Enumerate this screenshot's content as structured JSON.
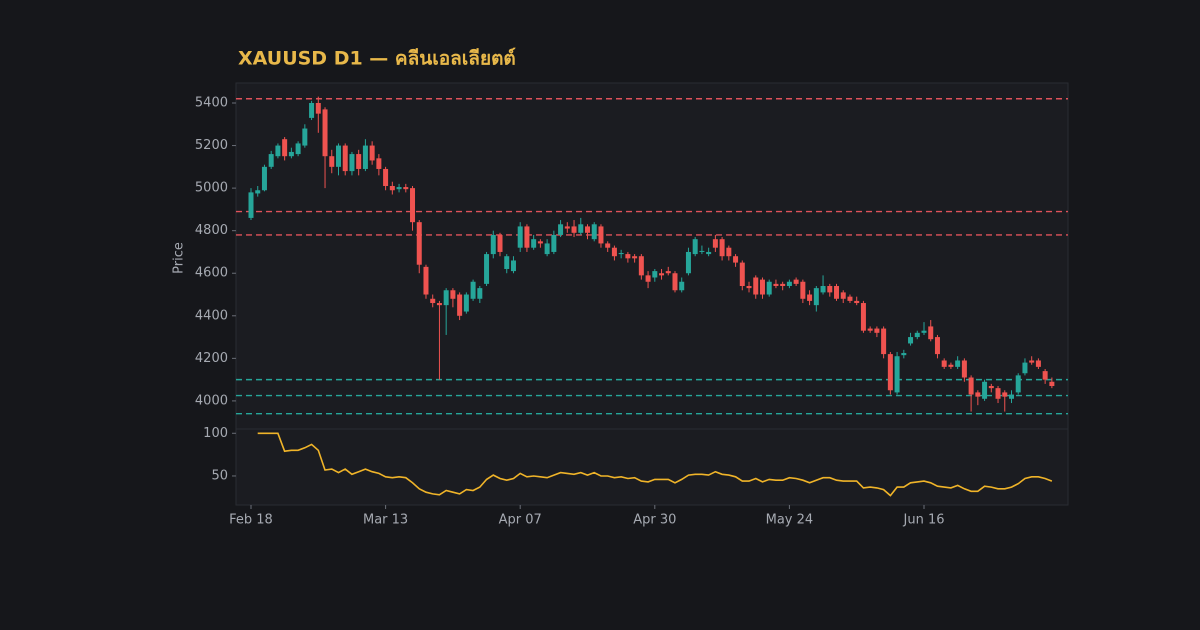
{
  "chart_data": [
    {
      "type": "candlestick",
      "title": "XAUUSD D1 — คลีนเอลเลียตต์",
      "y_label": "Price",
      "categories": [
        "Feb 18",
        null,
        null,
        null,
        null,
        null,
        null,
        null,
        null,
        null,
        null,
        null,
        null,
        null,
        null,
        null,
        null,
        null,
        null,
        null,
        "Mar 13",
        null,
        null,
        null,
        null,
        null,
        null,
        null,
        null,
        null,
        null,
        null,
        null,
        null,
        null,
        null,
        null,
        null,
        null,
        null,
        "Apr 07",
        null,
        null,
        null,
        null,
        null,
        null,
        null,
        null,
        null,
        null,
        null,
        null,
        null,
        null,
        null,
        null,
        null,
        null,
        null,
        "Apr 30",
        null,
        null,
        null,
        null,
        null,
        null,
        null,
        null,
        null,
        null,
        null,
        null,
        null,
        null,
        null,
        null,
        null,
        null,
        null,
        "May 24",
        null,
        null,
        null,
        null,
        null,
        null,
        null,
        null,
        null,
        null,
        null,
        null,
        null,
        null,
        null,
        null,
        null,
        null,
        null,
        "Jun 16",
        null,
        null,
        null,
        null,
        null,
        null,
        null,
        null,
        null,
        null,
        null,
        null,
        null,
        null,
        null,
        null,
        null,
        null,
        null
      ],
      "open": [
        4860,
        4975,
        4990,
        5100,
        5150,
        5230,
        5150,
        5160,
        5200,
        5330,
        5400,
        5370,
        5150,
        5100,
        5200,
        5080,
        5160,
        5090,
        5200,
        5140,
        5090,
        5010,
        4995,
        5005,
        5000,
        4840,
        4630,
        4480,
        4460,
        4450,
        4520,
        4500,
        4420,
        4480,
        4480,
        4550,
        4690,
        4780,
        4620,
        4610,
        4720,
        4820,
        4720,
        4750,
        4690,
        4700,
        4780,
        4820,
        4820,
        4790,
        4820,
        4760,
        4820,
        4740,
        4720,
        4690,
        4690,
        4680,
        4680,
        4590,
        4580,
        4600,
        4610,
        4600,
        4520,
        4600,
        4690,
        4700,
        4690,
        4760,
        4760,
        4720,
        4680,
        4650,
        4540,
        4580,
        4570,
        4500,
        4550,
        4550,
        4540,
        4570,
        4560,
        4500,
        4450,
        4510,
        4540,
        4540,
        4510,
        4490,
        4470,
        4460,
        4340,
        4340,
        4340,
        4220,
        4040,
        4215,
        4270,
        4300,
        4320,
        4350,
        4300,
        4190,
        4170,
        4160,
        4190,
        4110,
        4040,
        4010,
        4070,
        4060,
        4040,
        4010,
        4040,
        4130,
        4190,
        4190,
        4140,
        4090
      ],
      "high": [
        5000,
        5010,
        5110,
        5175,
        5210,
        5240,
        5190,
        5220,
        5300,
        5410,
        5430,
        5380,
        5180,
        5210,
        5210,
        5170,
        5180,
        5230,
        5220,
        5160,
        5100,
        5030,
        5020,
        5020,
        5010,
        4850,
        4640,
        4500,
        4470,
        4530,
        4530,
        4510,
        4510,
        4570,
        4540,
        4700,
        4800,
        4790,
        4690,
        4680,
        4840,
        4830,
        4780,
        4760,
        4760,
        4800,
        4850,
        4840,
        4850,
        4860,
        4830,
        4840,
        4830,
        4750,
        4730,
        4710,
        4700,
        4690,
        4690,
        4610,
        4620,
        4620,
        4630,
        4610,
        4580,
        4720,
        4770,
        4730,
        4720,
        4780,
        4770,
        4730,
        4690,
        4660,
        4560,
        4590,
        4580,
        4570,
        4570,
        4560,
        4570,
        4580,
        4570,
        4520,
        4540,
        4590,
        4550,
        4550,
        4520,
        4500,
        4490,
        4470,
        4350,
        4350,
        4350,
        4230,
        4230,
        4240,
        4320,
        4330,
        4370,
        4380,
        4310,
        4200,
        4180,
        4210,
        4200,
        4120,
        4050,
        4100,
        4080,
        4070,
        4050,
        4050,
        4130,
        4200,
        4210,
        4200,
        4150,
        4110
      ],
      "low": [
        4850,
        4960,
        4985,
        5090,
        5140,
        5130,
        5140,
        5150,
        5190,
        5320,
        5260,
        5000,
        5070,
        5060,
        5060,
        5060,
        5060,
        5080,
        5110,
        5060,
        4990,
        4970,
        4980,
        4980,
        4800,
        4600,
        4480,
        4440,
        4100,
        4310,
        4440,
        4380,
        4410,
        4470,
        4460,
        4540,
        4670,
        4680,
        4600,
        4600,
        4700,
        4700,
        4710,
        4720,
        4680,
        4690,
        4770,
        4790,
        4770,
        4780,
        4760,
        4750,
        4720,
        4700,
        4660,
        4670,
        4650,
        4650,
        4570,
        4530,
        4560,
        4570,
        4590,
        4510,
        4510,
        4590,
        4680,
        4690,
        4680,
        4700,
        4660,
        4660,
        4630,
        4520,
        4510,
        4480,
        4480,
        4490,
        4530,
        4520,
        4530,
        4540,
        4460,
        4450,
        4420,
        4500,
        4490,
        4470,
        4460,
        4460,
        4450,
        4320,
        4320,
        4300,
        4200,
        4030,
        4030,
        4200,
        4260,
        4290,
        4310,
        4280,
        4200,
        4150,
        4150,
        4150,
        4090,
        3950,
        3980,
        4000,
        4040,
        3990,
        3950,
        3990,
        4030,
        4120,
        4170,
        4150,
        4080,
        4060
      ],
      "close": [
        4980,
        4990,
        5100,
        5160,
        5200,
        5150,
        5170,
        5210,
        5280,
        5400,
        5350,
        5150,
        5100,
        5200,
        5080,
        5160,
        5090,
        5200,
        5130,
        5090,
        5010,
        4990,
        5005,
        4995,
        4840,
        4640,
        4500,
        4460,
        4450,
        4520,
        4480,
        4400,
        4500,
        4560,
        4530,
        4690,
        4780,
        4700,
        4680,
        4660,
        4820,
        4720,
        4760,
        4740,
        4740,
        4780,
        4830,
        4810,
        4790,
        4830,
        4790,
        4830,
        4740,
        4720,
        4680,
        4695,
        4670,
        4670,
        4590,
        4560,
        4610,
        4590,
        4600,
        4520,
        4560,
        4700,
        4760,
        4705,
        4700,
        4720,
        4680,
        4680,
        4650,
        4540,
        4530,
        4500,
        4500,
        4560,
        4540,
        4540,
        4560,
        4550,
        4480,
        4470,
        4530,
        4540,
        4510,
        4480,
        4480,
        4470,
        4460,
        4330,
        4330,
        4320,
        4220,
        4050,
        4210,
        4225,
        4300,
        4320,
        4330,
        4290,
        4220,
        4160,
        4160,
        4190,
        4110,
        4030,
        4020,
        4090,
        4060,
        4010,
        4020,
        4030,
        4120,
        4180,
        4180,
        4160,
        4100,
        4070
      ],
      "up_color": "#26a69a",
      "down_color": "#ef5350",
      "levels": [
        {
          "value": 5420,
          "color": "#e0525a"
        },
        {
          "value": 4890,
          "color": "#e0525a"
        },
        {
          "value": 4780,
          "color": "#e0525a"
        },
        {
          "value": 4100,
          "color": "#26a69a"
        },
        {
          "value": 4025,
          "color": "#26a69a"
        },
        {
          "value": 3940,
          "color": "#26a69a"
        }
      ],
      "ylim": [
        3868,
        5494
      ],
      "yticks": [
        4000,
        4200,
        4400,
        4600,
        4800,
        5000,
        5200,
        5400
      ]
    },
    {
      "type": "line",
      "color": "#f0b429",
      "values": [
        null,
        100,
        100,
        100,
        100,
        79,
        80,
        80,
        83,
        87,
        80,
        57,
        58,
        54,
        58,
        52,
        55,
        58,
        55,
        53,
        49,
        48,
        49,
        48,
        42,
        35,
        31,
        29,
        28,
        33,
        31,
        29,
        34,
        33,
        37,
        46,
        51,
        47,
        45,
        47,
        53,
        49,
        50,
        49,
        48,
        51,
        54,
        53,
        52,
        54,
        51,
        54,
        50,
        50,
        48,
        49,
        47,
        48,
        44,
        43,
        46,
        46,
        46,
        42,
        46,
        51,
        52,
        52,
        51,
        55,
        52,
        51,
        49,
        44,
        44,
        47,
        43,
        46,
        45,
        45,
        48,
        47,
        45,
        42,
        45,
        48,
        48,
        45,
        44,
        44,
        44,
        36,
        37,
        36,
        34,
        27,
        37,
        37,
        42,
        43,
        44,
        42,
        38,
        37,
        36,
        39,
        35,
        32,
        32,
        38,
        37,
        35,
        35,
        37,
        41,
        47,
        49,
        49,
        47,
        44
      ],
      "ylim": [
        16,
        105
      ],
      "yticks": [
        50,
        100
      ]
    }
  ]
}
